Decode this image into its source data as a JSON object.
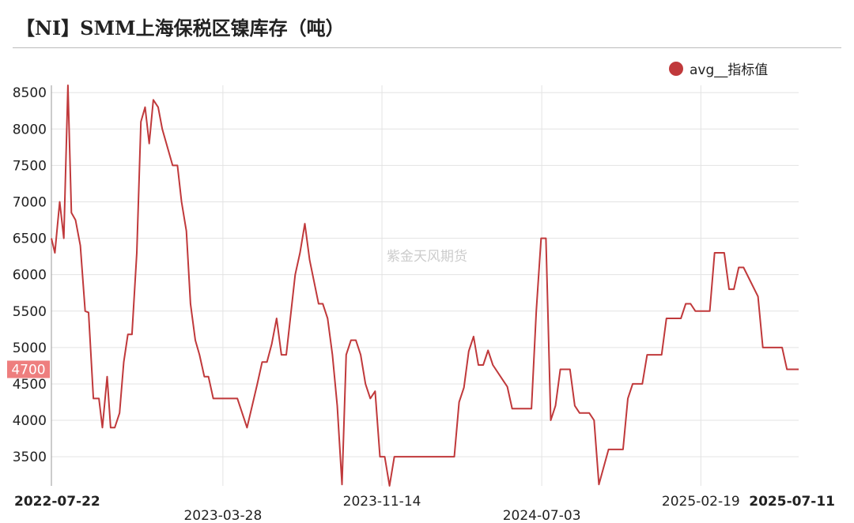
{
  "title": "【NI】SMM上海保税区镍库存（吨）",
  "watermark": "紫金天风期货",
  "chart_data": {
    "type": "line",
    "title": "【NI】SMM上海保税区镍库存（吨）",
    "legend_position": "top-right",
    "grid": true,
    "ylim": [
      3100,
      8600
    ],
    "yticks": [
      3500,
      4000,
      4500,
      5000,
      5500,
      6000,
      6500,
      7000,
      7500,
      8000,
      8500
    ],
    "xlim": [
      "2022-07-22",
      "2025-07-11"
    ],
    "xticks": [
      {
        "label": "2022-07-22",
        "date": "2022-07-22",
        "bold": true,
        "row": 1
      },
      {
        "label": "2023-03-28",
        "date": "2023-03-28",
        "bold": false,
        "row": 2
      },
      {
        "label": "2023-11-14",
        "date": "2023-11-14",
        "bold": false,
        "row": 1
      },
      {
        "label": "2024-07-03",
        "date": "2024-07-03",
        "bold": false,
        "row": 2
      },
      {
        "label": "2025-02-19",
        "date": "2025-02-19",
        "bold": false,
        "row": 1
      },
      {
        "label": "2025-07-11",
        "date": "2025-07-11",
        "bold": true,
        "row": 1
      }
    ],
    "last_value_label": "4700",
    "series": [
      {
        "name": "avg__指标值",
        "color": "#c0393b",
        "points": [
          [
            "2022-07-22",
            6500
          ],
          [
            "2022-07-27",
            6300
          ],
          [
            "2022-08-03",
            7000
          ],
          [
            "2022-08-09",
            6500
          ],
          [
            "2022-08-15",
            8600
          ],
          [
            "2022-08-20",
            6850
          ],
          [
            "2022-08-26",
            6750
          ],
          [
            "2022-09-02",
            6400
          ],
          [
            "2022-09-09",
            5500
          ],
          [
            "2022-09-14",
            5480
          ],
          [
            "2022-09-21",
            4300
          ],
          [
            "2022-09-29",
            4300
          ],
          [
            "2022-10-04",
            3900
          ],
          [
            "2022-10-11",
            4600
          ],
          [
            "2022-10-16",
            3900
          ],
          [
            "2022-10-22",
            3900
          ],
          [
            "2022-10-29",
            4100
          ],
          [
            "2022-11-04",
            4800
          ],
          [
            "2022-11-10",
            5180
          ],
          [
            "2022-11-16",
            5180
          ],
          [
            "2022-11-23",
            6300
          ],
          [
            "2022-11-29",
            8100
          ],
          [
            "2022-12-05",
            8300
          ],
          [
            "2022-12-11",
            7800
          ],
          [
            "2022-12-17",
            8400
          ],
          [
            "2022-12-24",
            8300
          ],
          [
            "2022-12-30",
            8000
          ],
          [
            "2023-01-14",
            7500
          ],
          [
            "2023-01-21",
            7500
          ],
          [
            "2023-01-27",
            7000
          ],
          [
            "2023-02-03",
            6600
          ],
          [
            "2023-02-09",
            5600
          ],
          [
            "2023-02-16",
            5100
          ],
          [
            "2023-02-22",
            4900
          ],
          [
            "2023-03-01",
            4600
          ],
          [
            "2023-03-07",
            4600
          ],
          [
            "2023-03-14",
            4300
          ],
          [
            "2023-04-18",
            4300
          ],
          [
            "2023-05-02",
            3900
          ],
          [
            "2023-05-17",
            4500
          ],
          [
            "2023-05-24",
            4800
          ],
          [
            "2023-05-31",
            4800
          ],
          [
            "2023-06-07",
            5050
          ],
          [
            "2023-06-14",
            5400
          ],
          [
            "2023-06-21",
            4900
          ],
          [
            "2023-06-28",
            4900
          ],
          [
            "2023-07-11",
            6000
          ],
          [
            "2023-07-18",
            6300
          ],
          [
            "2023-07-25",
            6700
          ],
          [
            "2023-08-01",
            6200
          ],
          [
            "2023-08-14",
            5600
          ],
          [
            "2023-08-20",
            5600
          ],
          [
            "2023-08-27",
            5400
          ],
          [
            "2023-09-03",
            4900
          ],
          [
            "2023-09-10",
            4200
          ],
          [
            "2023-09-17",
            3120
          ],
          [
            "2023-09-23",
            4900
          ],
          [
            "2023-09-30",
            5100
          ],
          [
            "2023-10-07",
            5100
          ],
          [
            "2023-10-14",
            4900
          ],
          [
            "2023-10-21",
            4500
          ],
          [
            "2023-10-28",
            4300
          ],
          [
            "2023-11-04",
            4400
          ],
          [
            "2023-11-11",
            3500
          ],
          [
            "2023-11-18",
            3500
          ],
          [
            "2023-11-25",
            3100
          ],
          [
            "2023-12-02",
            3500
          ],
          [
            "2024-02-27",
            3500
          ],
          [
            "2024-03-05",
            4250
          ],
          [
            "2024-03-12",
            4450
          ],
          [
            "2024-03-19",
            4950
          ],
          [
            "2024-03-26",
            5150
          ],
          [
            "2024-04-02",
            4760
          ],
          [
            "2024-04-09",
            4760
          ],
          [
            "2024-04-16",
            4960
          ],
          [
            "2024-04-23",
            4760
          ],
          [
            "2024-05-14",
            4460
          ],
          [
            "2024-05-21",
            4160
          ],
          [
            "2024-06-18",
            4160
          ],
          [
            "2024-06-25",
            5500
          ],
          [
            "2024-07-02",
            6500
          ],
          [
            "2024-07-09",
            6500
          ],
          [
            "2024-07-16",
            4000
          ],
          [
            "2024-07-23",
            4200
          ],
          [
            "2024-07-30",
            4700
          ],
          [
            "2024-08-13",
            4700
          ],
          [
            "2024-08-20",
            4200
          ],
          [
            "2024-08-27",
            4100
          ],
          [
            "2024-09-10",
            4100
          ],
          [
            "2024-09-17",
            4000
          ],
          [
            "2024-09-24",
            3120
          ],
          [
            "2024-10-08",
            3600
          ],
          [
            "2024-10-29",
            3600
          ],
          [
            "2024-11-05",
            4300
          ],
          [
            "2024-11-12",
            4500
          ],
          [
            "2024-11-26",
            4500
          ],
          [
            "2024-12-03",
            4900
          ],
          [
            "2024-12-24",
            4900
          ],
          [
            "2024-12-31",
            5400
          ],
          [
            "2025-01-21",
            5400
          ],
          [
            "2025-01-28",
            5600
          ],
          [
            "2025-02-04",
            5600
          ],
          [
            "2025-02-11",
            5500
          ],
          [
            "2025-03-04",
            5500
          ],
          [
            "2025-03-11",
            6300
          ],
          [
            "2025-03-25",
            6300
          ],
          [
            "2025-04-01",
            5800
          ],
          [
            "2025-04-08",
            5800
          ],
          [
            "2025-04-15",
            6100
          ],
          [
            "2025-04-22",
            6100
          ],
          [
            "2025-05-13",
            5700
          ],
          [
            "2025-05-20",
            5000
          ],
          [
            "2025-06-17",
            5000
          ],
          [
            "2025-06-24",
            4700
          ],
          [
            "2025-07-11",
            4700
          ]
        ]
      }
    ]
  }
}
